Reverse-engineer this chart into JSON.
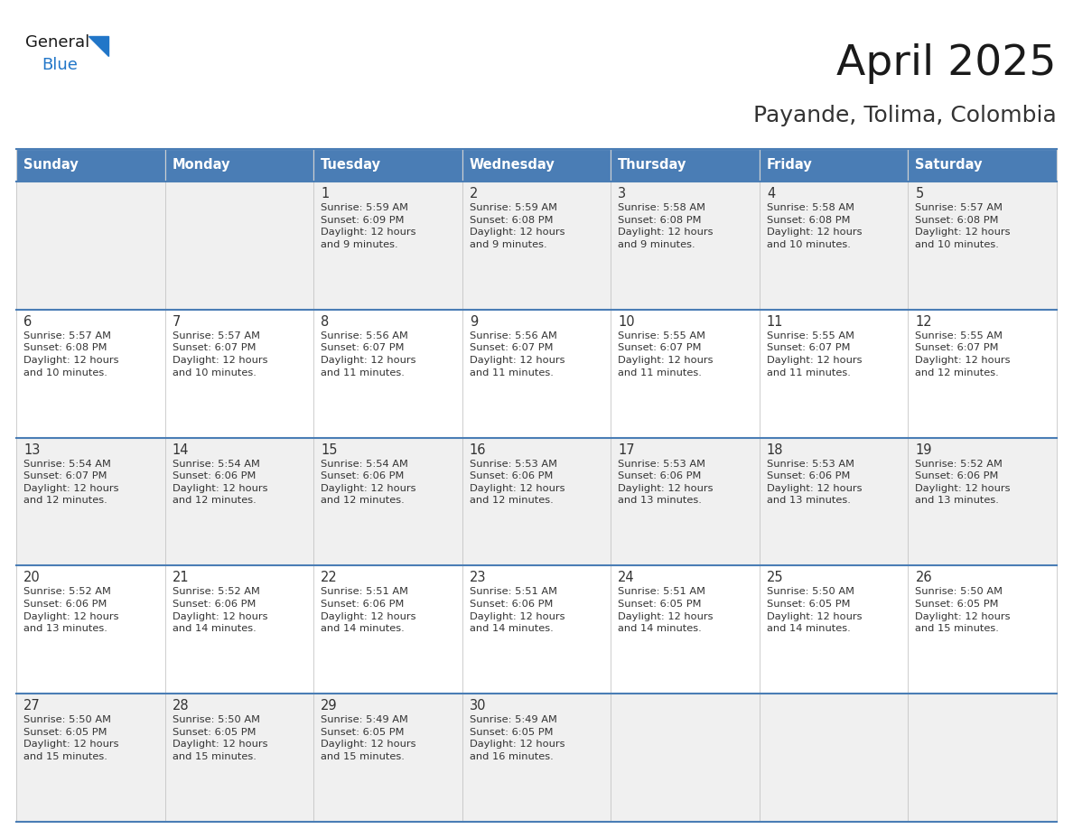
{
  "title": "April 2025",
  "subtitle": "Payande, Tolima, Colombia",
  "header_bg_color": "#4A7DB5",
  "header_text_color": "#FFFFFF",
  "header_font_size": 10.5,
  "day_names": [
    "Sunday",
    "Monday",
    "Tuesday",
    "Wednesday",
    "Thursday",
    "Friday",
    "Saturday"
  ],
  "title_font_size": 34,
  "subtitle_font_size": 18,
  "cell_text_color": "#333333",
  "cell_number_font_size": 10.5,
  "cell_info_font_size": 8.2,
  "row_bg_colors": [
    "#F0F0F0",
    "#FFFFFF"
  ],
  "grid_color": "#4A7DB5",
  "logo_general_color": "#1a1a1a",
  "logo_blue_color": "#2176C8",
  "logo_triangle_color": "#2176C8",
  "weeks": [
    [
      {
        "day": null,
        "info": null
      },
      {
        "day": null,
        "info": null
      },
      {
        "day": 1,
        "info": "Sunrise: 5:59 AM\nSunset: 6:09 PM\nDaylight: 12 hours\nand 9 minutes."
      },
      {
        "day": 2,
        "info": "Sunrise: 5:59 AM\nSunset: 6:08 PM\nDaylight: 12 hours\nand 9 minutes."
      },
      {
        "day": 3,
        "info": "Sunrise: 5:58 AM\nSunset: 6:08 PM\nDaylight: 12 hours\nand 9 minutes."
      },
      {
        "day": 4,
        "info": "Sunrise: 5:58 AM\nSunset: 6:08 PM\nDaylight: 12 hours\nand 10 minutes."
      },
      {
        "day": 5,
        "info": "Sunrise: 5:57 AM\nSunset: 6:08 PM\nDaylight: 12 hours\nand 10 minutes."
      }
    ],
    [
      {
        "day": 6,
        "info": "Sunrise: 5:57 AM\nSunset: 6:08 PM\nDaylight: 12 hours\nand 10 minutes."
      },
      {
        "day": 7,
        "info": "Sunrise: 5:57 AM\nSunset: 6:07 PM\nDaylight: 12 hours\nand 10 minutes."
      },
      {
        "day": 8,
        "info": "Sunrise: 5:56 AM\nSunset: 6:07 PM\nDaylight: 12 hours\nand 11 minutes."
      },
      {
        "day": 9,
        "info": "Sunrise: 5:56 AM\nSunset: 6:07 PM\nDaylight: 12 hours\nand 11 minutes."
      },
      {
        "day": 10,
        "info": "Sunrise: 5:55 AM\nSunset: 6:07 PM\nDaylight: 12 hours\nand 11 minutes."
      },
      {
        "day": 11,
        "info": "Sunrise: 5:55 AM\nSunset: 6:07 PM\nDaylight: 12 hours\nand 11 minutes."
      },
      {
        "day": 12,
        "info": "Sunrise: 5:55 AM\nSunset: 6:07 PM\nDaylight: 12 hours\nand 12 minutes."
      }
    ],
    [
      {
        "day": 13,
        "info": "Sunrise: 5:54 AM\nSunset: 6:07 PM\nDaylight: 12 hours\nand 12 minutes."
      },
      {
        "day": 14,
        "info": "Sunrise: 5:54 AM\nSunset: 6:06 PM\nDaylight: 12 hours\nand 12 minutes."
      },
      {
        "day": 15,
        "info": "Sunrise: 5:54 AM\nSunset: 6:06 PM\nDaylight: 12 hours\nand 12 minutes."
      },
      {
        "day": 16,
        "info": "Sunrise: 5:53 AM\nSunset: 6:06 PM\nDaylight: 12 hours\nand 12 minutes."
      },
      {
        "day": 17,
        "info": "Sunrise: 5:53 AM\nSunset: 6:06 PM\nDaylight: 12 hours\nand 13 minutes."
      },
      {
        "day": 18,
        "info": "Sunrise: 5:53 AM\nSunset: 6:06 PM\nDaylight: 12 hours\nand 13 minutes."
      },
      {
        "day": 19,
        "info": "Sunrise: 5:52 AM\nSunset: 6:06 PM\nDaylight: 12 hours\nand 13 minutes."
      }
    ],
    [
      {
        "day": 20,
        "info": "Sunrise: 5:52 AM\nSunset: 6:06 PM\nDaylight: 12 hours\nand 13 minutes."
      },
      {
        "day": 21,
        "info": "Sunrise: 5:52 AM\nSunset: 6:06 PM\nDaylight: 12 hours\nand 14 minutes."
      },
      {
        "day": 22,
        "info": "Sunrise: 5:51 AM\nSunset: 6:06 PM\nDaylight: 12 hours\nand 14 minutes."
      },
      {
        "day": 23,
        "info": "Sunrise: 5:51 AM\nSunset: 6:06 PM\nDaylight: 12 hours\nand 14 minutes."
      },
      {
        "day": 24,
        "info": "Sunrise: 5:51 AM\nSunset: 6:05 PM\nDaylight: 12 hours\nand 14 minutes."
      },
      {
        "day": 25,
        "info": "Sunrise: 5:50 AM\nSunset: 6:05 PM\nDaylight: 12 hours\nand 14 minutes."
      },
      {
        "day": 26,
        "info": "Sunrise: 5:50 AM\nSunset: 6:05 PM\nDaylight: 12 hours\nand 15 minutes."
      }
    ],
    [
      {
        "day": 27,
        "info": "Sunrise: 5:50 AM\nSunset: 6:05 PM\nDaylight: 12 hours\nand 15 minutes."
      },
      {
        "day": 28,
        "info": "Sunrise: 5:50 AM\nSunset: 6:05 PM\nDaylight: 12 hours\nand 15 minutes."
      },
      {
        "day": 29,
        "info": "Sunrise: 5:49 AM\nSunset: 6:05 PM\nDaylight: 12 hours\nand 15 minutes."
      },
      {
        "day": 30,
        "info": "Sunrise: 5:49 AM\nSunset: 6:05 PM\nDaylight: 12 hours\nand 16 minutes."
      },
      {
        "day": null,
        "info": null
      },
      {
        "day": null,
        "info": null
      },
      {
        "day": null,
        "info": null
      }
    ]
  ]
}
